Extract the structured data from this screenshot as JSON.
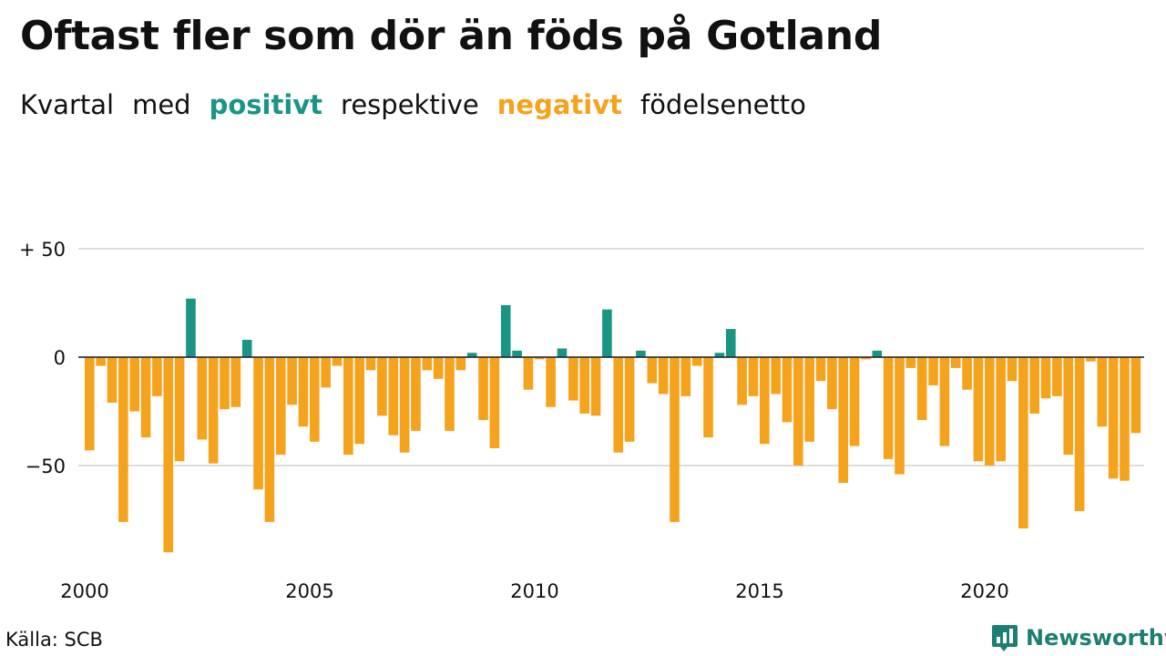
{
  "header": {
    "title": "Oftast fler som dör än föds på Gotland",
    "subtitle": {
      "w1": "Kvartal",
      "w2": "med",
      "positive_word": "positivt",
      "w3": "respektive",
      "negative_word": "negativt",
      "w4": "födelsenetto"
    }
  },
  "colors": {
    "positive": "#1a9583",
    "negative": "#f5a21d",
    "grid": "#dddddd"
  },
  "chart_data": {
    "type": "bar",
    "x_start_year": 2000,
    "periods_per_year": 4,
    "values": [
      -43,
      -4,
      -21,
      -76,
      -25,
      -37,
      -18,
      -90,
      -48,
      27,
      -38,
      -49,
      -24,
      -23,
      8,
      -61,
      -76,
      -45,
      -22,
      -32,
      -39,
      -14,
      -4,
      -45,
      -40,
      -6,
      -27,
      -36,
      -44,
      -34,
      -6,
      -10,
      -34,
      -6,
      2,
      -29,
      -42,
      24,
      3,
      -15,
      -1,
      -23,
      4,
      -20,
      -26,
      -27,
      22,
      -44,
      -39,
      3,
      -12,
      -17,
      -76,
      -18,
      -4,
      -37,
      2,
      13,
      -22,
      -18,
      -40,
      -17,
      -30,
      -50,
      -39,
      -11,
      -24,
      -58,
      -41,
      -1,
      3,
      -47,
      -54,
      -5,
      -29,
      -13,
      -41,
      -5,
      -15,
      -48,
      -50,
      -48,
      -11,
      -79,
      -26,
      -19,
      -18,
      -45,
      -71,
      -2,
      -32,
      -56,
      -57,
      -35
    ],
    "yticks": [
      {
        "value": 50,
        "label": "+ 50"
      },
      {
        "value": 0,
        "label": "0"
      },
      {
        "value": -50,
        "label": "−50"
      }
    ],
    "xticks": [
      {
        "year": 2000,
        "label": "2000"
      },
      {
        "year": 2005,
        "label": "2005"
      },
      {
        "year": 2010,
        "label": "2010"
      },
      {
        "year": 2015,
        "label": "2015"
      },
      {
        "year": 2020,
        "label": "2020"
      }
    ],
    "ylim": [
      -100,
      50
    ],
    "grid": true
  },
  "footer": {
    "source": "Källa: SCB",
    "brand": "Newsworthy",
    "logo_icon": "bar-chart-logo-icon"
  }
}
